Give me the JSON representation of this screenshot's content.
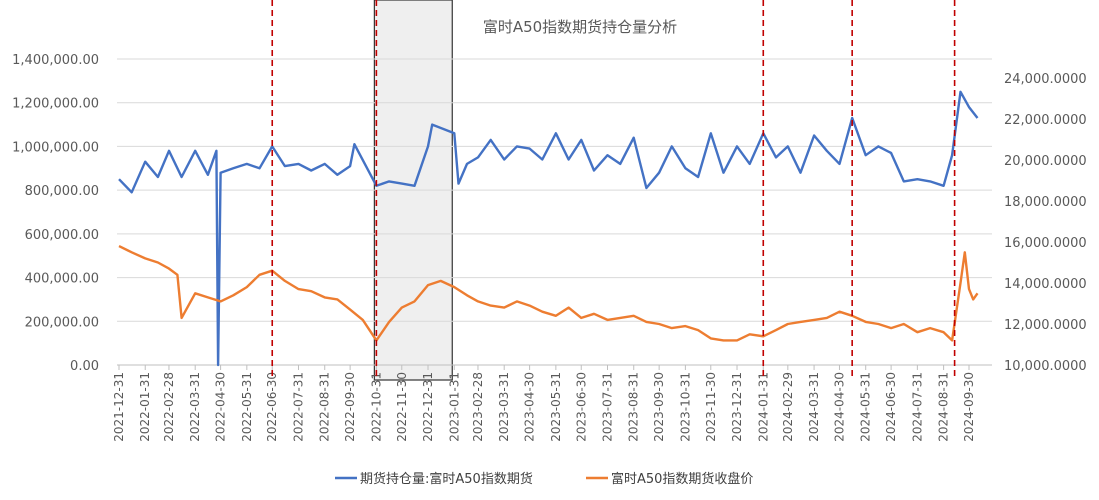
{
  "chart_data": {
    "type": "line",
    "title": "富时A50指数期货持仓量分析",
    "xlabel": "",
    "ylabel_left": "",
    "ylabel_right": "",
    "left_axis": {
      "ylim": [
        0,
        1400000
      ],
      "ticks": [
        "0.00",
        "200,000.00",
        "400,000.00",
        "600,000.00",
        "800,000.00",
        "1,000,000.00",
        "1,200,000.00",
        "1,400,000.00"
      ]
    },
    "right_axis": {
      "ylim": [
        10000,
        24000
      ],
      "ticks": [
        "10,000.0000",
        "12,000.0000",
        "14,000.0000",
        "16,000.0000",
        "18,000.0000",
        "20,000.0000",
        "22,000.0000",
        "24,000.0000"
      ]
    },
    "x_ticks": [
      "2021-12-31",
      "2022-01-31",
      "2022-02-28",
      "2022-03-31",
      "2022-04-30",
      "2022-05-31",
      "2022-06-30",
      "2022-07-31",
      "2022-08-31",
      "2022-09-30",
      "2022-10-31",
      "2022-11-30",
      "2022-12-31",
      "2023-01-31",
      "2023-02-28",
      "2023-03-31",
      "2023-04-30",
      "2023-05-31",
      "2023-06-30",
      "2023-07-31",
      "2023-08-31",
      "2023-09-30",
      "2023-10-31",
      "2023-11-30",
      "2023-12-31",
      "2024-01-31",
      "2024-02-29",
      "2024-03-31",
      "2024-04-30",
      "2024-05-31",
      "2024-06-30",
      "2024-07-31",
      "2024-08-31",
      "2024-09-30"
    ],
    "grid": true,
    "legend_position": "bottom",
    "series": [
      {
        "name": "期货持仓量:富时A50指数期货",
        "axis": "left",
        "color": "#4472C4",
        "x": [
          "2021-12-31",
          "2022-01-15",
          "2022-01-31",
          "2022-02-15",
          "2022-02-28",
          "2022-03-15",
          "2022-03-31",
          "2022-04-15",
          "2022-04-25",
          "2022-04-27",
          "2022-04-30",
          "2022-05-15",
          "2022-05-31",
          "2022-06-15",
          "2022-06-30",
          "2022-07-15",
          "2022-07-31",
          "2022-08-15",
          "2022-08-31",
          "2022-09-15",
          "2022-09-30",
          "2022-10-05",
          "2022-10-31",
          "2022-11-15",
          "2022-11-30",
          "2022-12-15",
          "2022-12-31",
          "2023-01-05",
          "2023-01-31",
          "2023-02-05",
          "2023-02-15",
          "2023-02-28",
          "2023-03-15",
          "2023-03-31",
          "2023-04-15",
          "2023-04-30",
          "2023-05-15",
          "2023-05-31",
          "2023-06-15",
          "2023-06-30",
          "2023-07-15",
          "2023-07-31",
          "2023-08-15",
          "2023-08-31",
          "2023-09-15",
          "2023-09-30",
          "2023-10-15",
          "2023-10-31",
          "2023-11-15",
          "2023-11-30",
          "2023-12-15",
          "2023-12-31",
          "2024-01-15",
          "2024-01-31",
          "2024-02-15",
          "2024-02-29",
          "2024-03-15",
          "2024-03-31",
          "2024-04-15",
          "2024-04-30",
          "2024-05-15",
          "2024-05-31",
          "2024-06-15",
          "2024-06-30",
          "2024-07-15",
          "2024-07-31",
          "2024-08-15",
          "2024-08-31",
          "2024-09-10",
          "2024-09-20",
          "2024-09-30",
          "2024-10-10"
        ],
        "values": [
          850000,
          790000,
          930000,
          860000,
          980000,
          860000,
          980000,
          870000,
          980000,
          0,
          880000,
          900000,
          920000,
          900000,
          1000000,
          910000,
          920000,
          890000,
          920000,
          870000,
          910000,
          1010000,
          820000,
          840000,
          830000,
          820000,
          1000000,
          1100000,
          1060000,
          830000,
          920000,
          950000,
          1030000,
          940000,
          1000000,
          990000,
          940000,
          1060000,
          940000,
          1030000,
          890000,
          960000,
          920000,
          1040000,
          810000,
          880000,
          1000000,
          900000,
          860000,
          1060000,
          880000,
          1000000,
          920000,
          1060000,
          950000,
          1000000,
          880000,
          1050000,
          980000,
          920000,
          1130000,
          960000,
          1000000,
          970000,
          840000,
          850000,
          840000,
          820000,
          960000,
          1250000,
          1180000,
          1130000
        ]
      },
      {
        "name": "富时A50指数期货收盘价",
        "axis": "right",
        "color": "#ED7D31",
        "x": [
          "2021-12-31",
          "2022-01-15",
          "2022-01-31",
          "2022-02-15",
          "2022-02-28",
          "2022-03-10",
          "2022-03-15",
          "2022-03-31",
          "2022-04-15",
          "2022-04-30",
          "2022-05-15",
          "2022-05-31",
          "2022-06-15",
          "2022-06-30",
          "2022-07-15",
          "2022-07-31",
          "2022-08-15",
          "2022-08-31",
          "2022-09-15",
          "2022-09-30",
          "2022-10-15",
          "2022-10-31",
          "2022-11-15",
          "2022-11-30",
          "2022-12-15",
          "2022-12-31",
          "2023-01-15",
          "2023-01-31",
          "2023-02-15",
          "2023-02-28",
          "2023-03-15",
          "2023-03-31",
          "2023-04-15",
          "2023-04-30",
          "2023-05-15",
          "2023-05-31",
          "2023-06-15",
          "2023-06-30",
          "2023-07-15",
          "2023-07-31",
          "2023-08-15",
          "2023-08-31",
          "2023-09-15",
          "2023-09-30",
          "2023-10-15",
          "2023-10-31",
          "2023-11-15",
          "2023-11-30",
          "2023-12-15",
          "2023-12-31",
          "2024-01-15",
          "2024-01-31",
          "2024-02-15",
          "2024-02-29",
          "2024-03-15",
          "2024-03-31",
          "2024-04-15",
          "2024-04-30",
          "2024-05-15",
          "2024-05-31",
          "2024-06-15",
          "2024-06-30",
          "2024-07-15",
          "2024-07-31",
          "2024-08-15",
          "2024-08-31",
          "2024-09-10",
          "2024-09-20",
          "2024-09-25",
          "2024-09-30",
          "2024-10-05",
          "2024-10-10"
        ],
        "values": [
          15800,
          15500,
          15200,
          15000,
          14700,
          14400,
          12300,
          13500,
          13300,
          13100,
          13400,
          13800,
          14400,
          14600,
          14100,
          13700,
          13600,
          13300,
          13200,
          12700,
          12200,
          11200,
          12100,
          12800,
          13100,
          13900,
          14100,
          13800,
          13400,
          13100,
          12900,
          12800,
          13100,
          12900,
          12600,
          12400,
          12800,
          12300,
          12500,
          12200,
          12300,
          12400,
          12100,
          12000,
          11800,
          11900,
          11700,
          11300,
          11200,
          11200,
          11500,
          11400,
          11700,
          12000,
          12100,
          12200,
          12300,
          12600,
          12400,
          12100,
          12000,
          11800,
          12000,
          11600,
          11800,
          11600,
          11200,
          14000,
          15500,
          13700,
          13200,
          13500
        ]
      }
    ],
    "annotations": {
      "red_dashed_vertical_lines": [
        "2022-06-30",
        "2022-10-31",
        "2024-01-31",
        "2024-05-15",
        "2024-09-13"
      ],
      "shaded_region": {
        "from": "2022-10-31",
        "to": "2023-01-31",
        "color": "#EFEFEF",
        "border": "#333333"
      }
    }
  },
  "legend": {
    "items": [
      {
        "label": "期货持仓量:富时A50指数期货",
        "color": "#4472C4"
      },
      {
        "label": "富时A50指数期货收盘价",
        "color": "#ED7D31"
      }
    ]
  }
}
